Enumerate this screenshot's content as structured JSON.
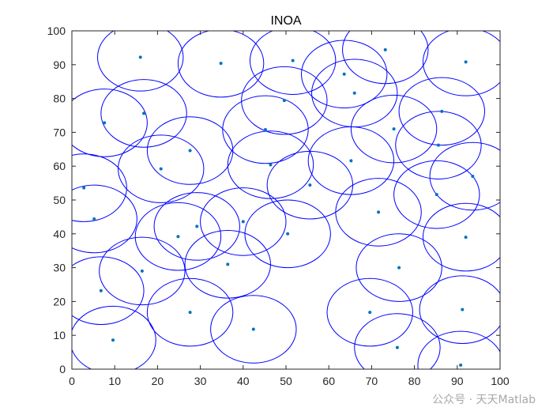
{
  "chart_data": {
    "type": "scatter",
    "title": "INOA",
    "xlabel": "",
    "ylabel": "",
    "xlim": [
      0,
      100
    ],
    "ylim": [
      0,
      100
    ],
    "xticks": [
      0,
      10,
      20,
      30,
      40,
      50,
      60,
      70,
      80,
      90,
      100
    ],
    "yticks": [
      0,
      10,
      20,
      30,
      40,
      50,
      60,
      70,
      80,
      90,
      100
    ],
    "grid": false,
    "coverage_radius": 10,
    "circle_color": "#0000ff",
    "point_color": "#0072bd",
    "points": [
      {
        "x": 16.0,
        "y": 92.2
      },
      {
        "x": 34.8,
        "y": 90.4
      },
      {
        "x": 51.6,
        "y": 91.2
      },
      {
        "x": 73.2,
        "y": 94.4
      },
      {
        "x": 92.0,
        "y": 90.8
      },
      {
        "x": 63.6,
        "y": 87.2
      },
      {
        "x": 66.0,
        "y": 81.6
      },
      {
        "x": 49.6,
        "y": 79.4
      },
      {
        "x": 16.8,
        "y": 75.6
      },
      {
        "x": 7.6,
        "y": 72.8
      },
      {
        "x": 86.4,
        "y": 76.2
      },
      {
        "x": 75.2,
        "y": 71.0
      },
      {
        "x": 45.2,
        "y": 70.8
      },
      {
        "x": 27.6,
        "y": 64.6
      },
      {
        "x": 85.6,
        "y": 66.2
      },
      {
        "x": 20.8,
        "y": 59.2
      },
      {
        "x": 46.4,
        "y": 60.4
      },
      {
        "x": 65.2,
        "y": 61.6
      },
      {
        "x": 93.6,
        "y": 57.0
      },
      {
        "x": 2.8,
        "y": 53.6
      },
      {
        "x": 55.6,
        "y": 54.4
      },
      {
        "x": 85.2,
        "y": 51.6
      },
      {
        "x": 71.6,
        "y": 46.4
      },
      {
        "x": 5.2,
        "y": 44.4
      },
      {
        "x": 40.0,
        "y": 43.6
      },
      {
        "x": 29.2,
        "y": 42.2
      },
      {
        "x": 24.8,
        "y": 39.2
      },
      {
        "x": 50.4,
        "y": 40.0
      },
      {
        "x": 92.0,
        "y": 39.0
      },
      {
        "x": 36.4,
        "y": 31.0
      },
      {
        "x": 76.4,
        "y": 30.0
      },
      {
        "x": 16.4,
        "y": 29.0
      },
      {
        "x": 6.8,
        "y": 23.2
      },
      {
        "x": 27.6,
        "y": 16.8
      },
      {
        "x": 69.6,
        "y": 16.8
      },
      {
        "x": 91.2,
        "y": 17.6
      },
      {
        "x": 42.4,
        "y": 11.8
      },
      {
        "x": 9.6,
        "y": 8.6
      },
      {
        "x": 76.0,
        "y": 6.4
      },
      {
        "x": 90.8,
        "y": 1.2
      }
    ]
  },
  "watermark": {
    "text": "公众号 · 天天Matlab"
  }
}
